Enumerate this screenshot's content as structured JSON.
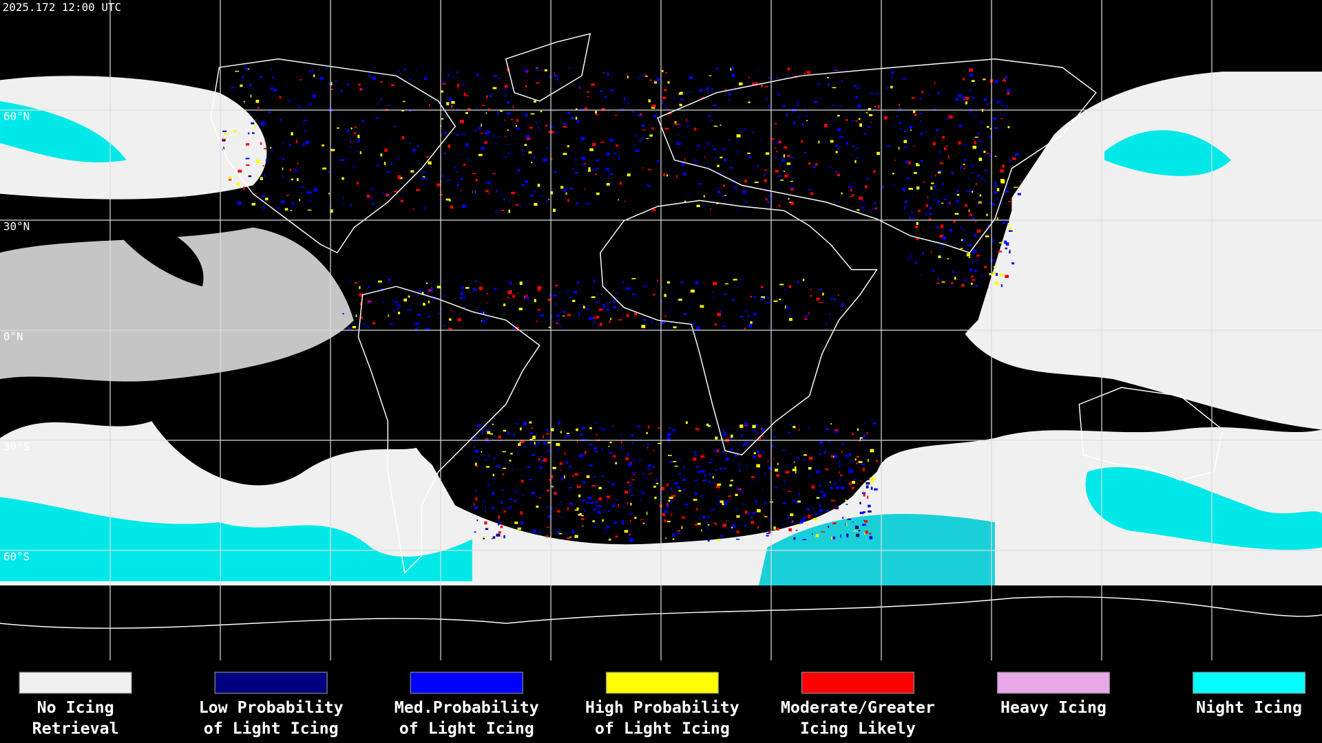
{
  "title": "2025.172 12:00 UTC",
  "latitude_labels": [
    "60°N",
    "30°N",
    "0°N",
    "30°S",
    "60°S"
  ],
  "legend": [
    {
      "label": [
        "No Icing",
        "Retrieval"
      ],
      "color": "#f0f0f0"
    },
    {
      "label": [
        "Low Probability",
        "of Light Icing"
      ],
      "color": "#000080"
    },
    {
      "label": [
        "Med.Probability",
        "of Light Icing"
      ],
      "color": "#0000ff"
    },
    {
      "label": [
        "High Probability",
        "of Light Icing"
      ],
      "color": "#ffff00"
    },
    {
      "label": [
        "Moderate/Greater",
        "Icing Likely"
      ],
      "color": "#ff0000"
    },
    {
      "label": [
        "Heavy Icing"
      ],
      "color": "#e8a8e8"
    },
    {
      "label": [
        "Night Icing"
      ],
      "color": "#00ffff"
    }
  ]
}
